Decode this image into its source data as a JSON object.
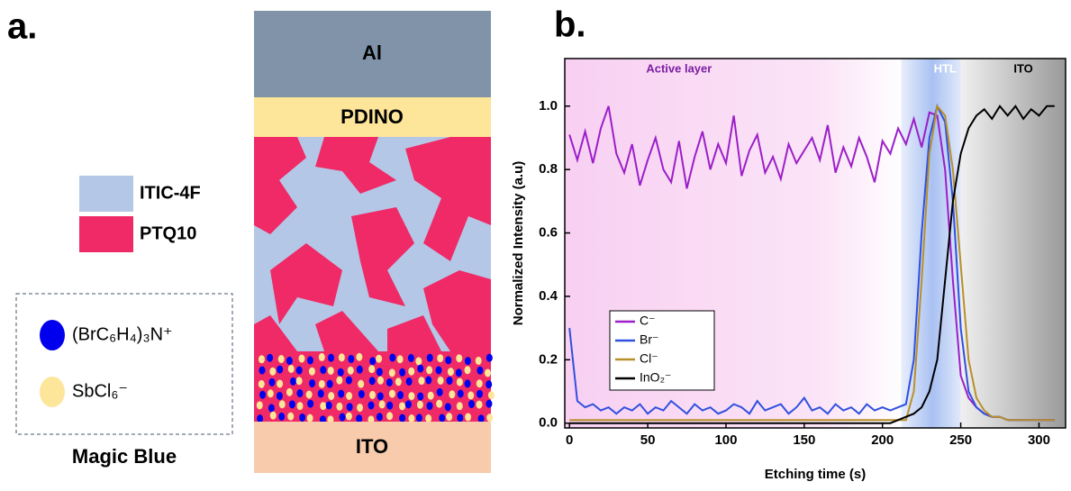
{
  "panel_a": {
    "label": "a.",
    "layers": [
      "Al",
      "PDINO",
      "ITO"
    ],
    "legend": [
      "ITIC-4F",
      "PTQ10"
    ],
    "dopant": [
      "(BrC₆H₄)₃N⁺",
      "SbCl₆⁻"
    ],
    "dopant_name": "Magic Blue"
  },
  "chart_data": {
    "type": "line",
    "panel_label": "b.",
    "x_label": "Etching time (s)",
    "y_label": "Normalized Intensity (a.u)",
    "annotations": [
      "Active layer",
      "HTL",
      "ITO"
    ],
    "xlim": [
      -3,
      317
    ],
    "xticks": [
      0,
      50,
      100,
      150,
      200,
      250,
      300
    ],
    "ylim": [
      -0.015,
      1.15
    ],
    "yticks": [
      {
        "value": 0,
        "label": "0.0"
      },
      0.2,
      0.4,
      0.6,
      0.8,
      {
        "value": 1,
        "label": "1.0"
      }
    ],
    "legend": "center-left",
    "x": [
      0,
      5,
      10,
      15,
      20,
      25,
      30,
      35,
      40,
      45,
      50,
      55,
      60,
      65,
      70,
      75,
      80,
      85,
      90,
      95,
      100,
      105,
      110,
      115,
      120,
      125,
      130,
      135,
      140,
      145,
      150,
      155,
      160,
      165,
      170,
      175,
      180,
      185,
      190,
      195,
      200,
      205,
      210,
      215,
      220,
      225,
      230,
      235,
      240,
      245,
      250,
      255,
      260,
      265,
      270,
      275,
      280,
      285,
      290,
      295,
      300,
      305,
      310
    ],
    "series": [
      {
        "name": "C⁻",
        "color": "#9b1fc8",
        "values": [
          0.91,
          0.83,
          0.92,
          0.82,
          0.93,
          1.0,
          0.85,
          0.79,
          0.88,
          0.75,
          0.83,
          0.9,
          0.8,
          0.76,
          0.89,
          0.74,
          0.84,
          0.92,
          0.8,
          0.88,
          0.82,
          0.97,
          0.78,
          0.86,
          0.91,
          0.79,
          0.84,
          0.77,
          0.88,
          0.82,
          0.86,
          0.9,
          0.83,
          0.94,
          0.79,
          0.87,
          0.81,
          0.9,
          0.84,
          0.76,
          0.89,
          0.85,
          0.93,
          0.88,
          0.96,
          0.87,
          0.98,
          0.97,
          0.8,
          0.45,
          0.15,
          0.08,
          0.05,
          0.03,
          0.02,
          0.02,
          0.01,
          0.01,
          0.01,
          0.01,
          0.01,
          0.01,
          0.01
        ]
      },
      {
        "name": "Br⁻",
        "color": "#3050e0",
        "values": [
          0.3,
          0.07,
          0.05,
          0.06,
          0.04,
          0.05,
          0.03,
          0.05,
          0.04,
          0.06,
          0.03,
          0.05,
          0.04,
          0.07,
          0.05,
          0.03,
          0.06,
          0.04,
          0.05,
          0.03,
          0.04,
          0.06,
          0.05,
          0.03,
          0.07,
          0.04,
          0.05,
          0.06,
          0.03,
          0.05,
          0.08,
          0.04,
          0.05,
          0.03,
          0.06,
          0.04,
          0.05,
          0.03,
          0.06,
          0.04,
          0.05,
          0.04,
          0.05,
          0.06,
          0.2,
          0.6,
          0.9,
          1.0,
          0.95,
          0.7,
          0.3,
          0.1,
          0.05,
          0.03,
          0.02,
          0.02,
          0.01,
          0.01,
          0.01,
          0.01,
          0.01,
          0.01,
          0.01
        ]
      },
      {
        "name": "Cl⁻",
        "color": "#b8902a",
        "values": [
          0.01,
          0.01,
          0.01,
          0.01,
          0.01,
          0.01,
          0.01,
          0.01,
          0.01,
          0.01,
          0.01,
          0.01,
          0.01,
          0.01,
          0.01,
          0.01,
          0.01,
          0.01,
          0.01,
          0.01,
          0.01,
          0.01,
          0.01,
          0.01,
          0.01,
          0.01,
          0.01,
          0.01,
          0.01,
          0.01,
          0.01,
          0.01,
          0.01,
          0.01,
          0.01,
          0.01,
          0.01,
          0.01,
          0.01,
          0.01,
          0.01,
          0.01,
          0.01,
          0.01,
          0.1,
          0.45,
          0.85,
          1.0,
          0.97,
          0.8,
          0.5,
          0.2,
          0.08,
          0.04,
          0.02,
          0.02,
          0.01,
          0.01,
          0.01,
          0.01,
          0.01,
          0.01,
          0.01
        ]
      },
      {
        "name": "InO₂⁻",
        "color": "#000000",
        "values": [
          0.0,
          0.0,
          0.0,
          0.0,
          0.0,
          0.0,
          0.0,
          0.0,
          0.0,
          0.0,
          0.0,
          0.0,
          0.0,
          0.0,
          0.0,
          0.0,
          0.0,
          0.0,
          0.0,
          0.0,
          0.0,
          0.0,
          0.0,
          0.0,
          0.0,
          0.0,
          0.0,
          0.0,
          0.0,
          0.0,
          0.0,
          0.0,
          0.0,
          0.0,
          0.0,
          0.0,
          0.0,
          0.0,
          0.0,
          0.0,
          0.0,
          0.0,
          0.01,
          0.02,
          0.03,
          0.05,
          0.1,
          0.2,
          0.45,
          0.7,
          0.85,
          0.93,
          0.97,
          0.99,
          0.96,
          1.0,
          0.97,
          1.0,
          0.96,
          0.99,
          0.97,
          1.0,
          1.0
        ]
      }
    ]
  }
}
